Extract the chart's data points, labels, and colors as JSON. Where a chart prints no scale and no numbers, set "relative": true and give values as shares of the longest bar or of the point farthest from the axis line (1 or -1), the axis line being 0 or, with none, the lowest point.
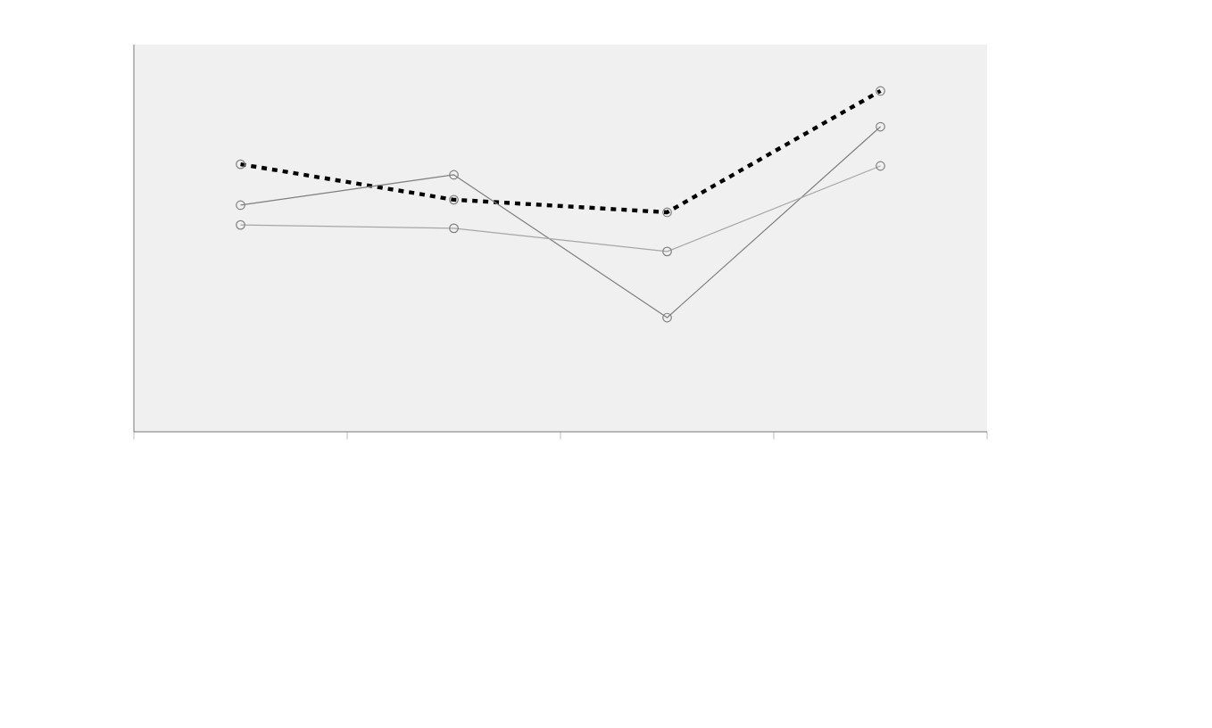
{
  "chart_data": {
    "type": "line",
    "relative": true,
    "categories": [
      null,
      null,
      null,
      null
    ],
    "marker": "circle",
    "series": [
      {
        "color": "#000000",
        "line_style": "dashed",
        "values": [
          0.785,
          0.681,
          0.644,
          1
        ]
      },
      {
        "color": "#7f7f7f",
        "line_style": "solid",
        "values": [
          0.665,
          0.754,
          0.335,
          0.895
        ]
      },
      {
        "color": "#a6a6a6",
        "line_style": "solid",
        "values": [
          0.607,
          0.597,
          0.529,
          0.78
        ]
      }
    ]
  }
}
